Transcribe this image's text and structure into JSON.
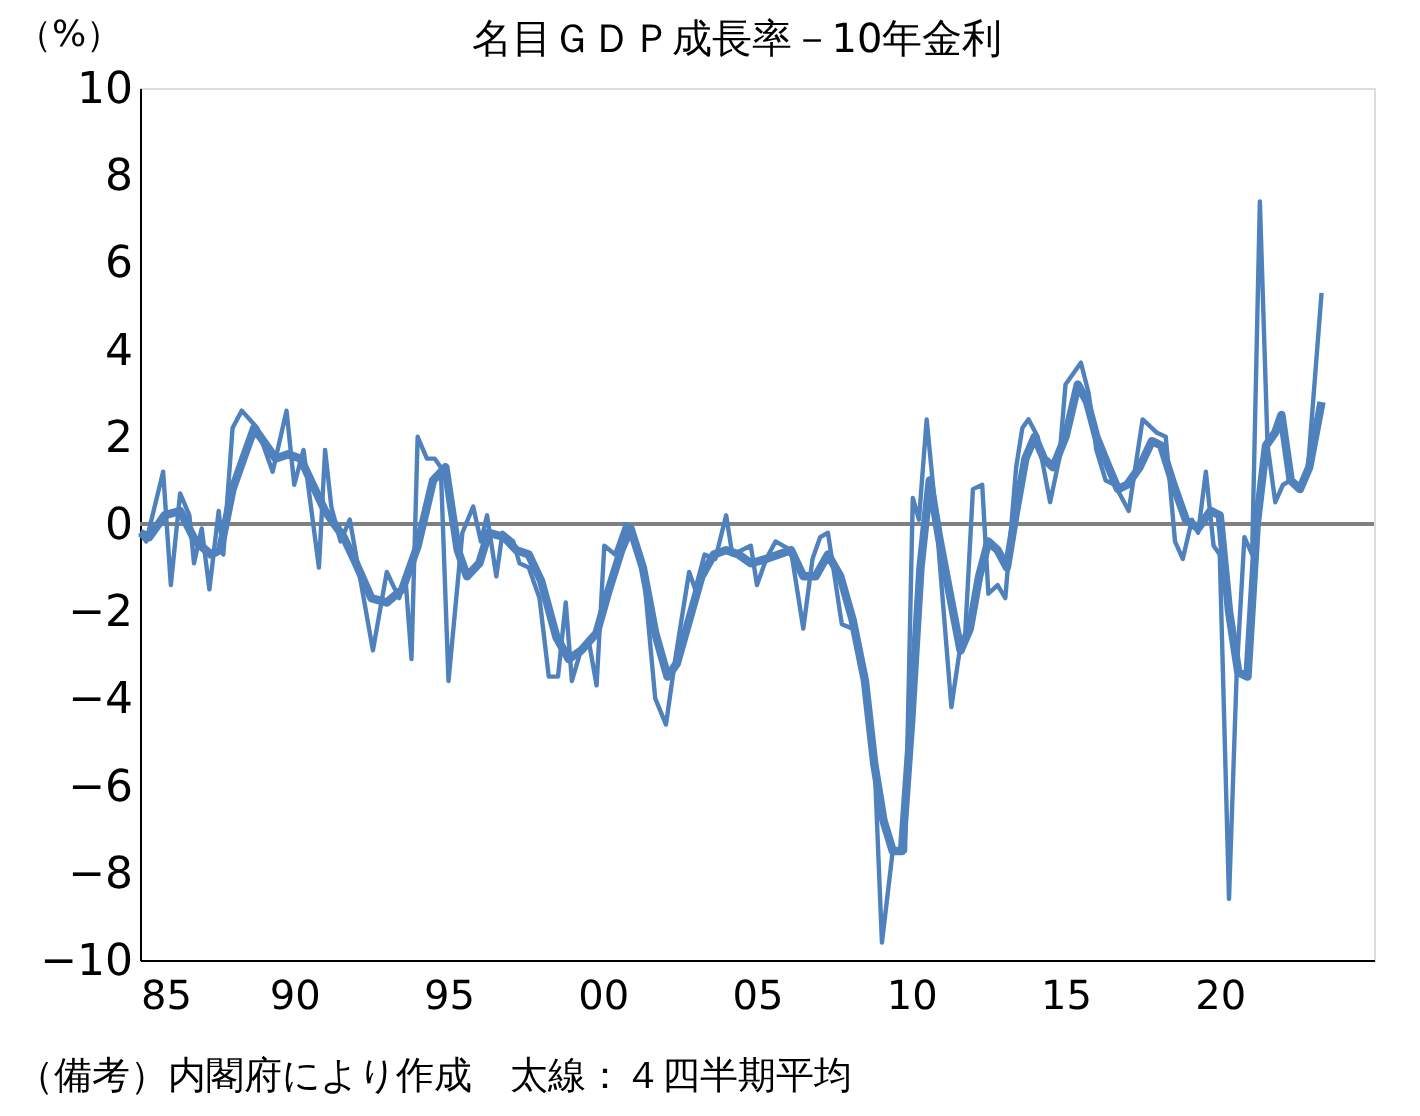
{
  "chart_data": {
    "type": "line",
    "title": "名目ＧＤＰ成長率－10年金利",
    "ylabel": "（%）",
    "annotations": [
      "（備考）内閣府により作成　太線：４四半期平均"
    ],
    "xlim": [
      1985,
      2025
    ],
    "xticks": [
      {
        "value": 1985,
        "label": "85"
      },
      {
        "value": 1990,
        "label": "90"
      },
      {
        "value": 1995,
        "label": "95"
      },
      {
        "value": 2000,
        "label": "00"
      },
      {
        "value": 2005,
        "label": "05"
      },
      {
        "value": 2010,
        "label": "10"
      },
      {
        "value": 2015,
        "label": "15"
      },
      {
        "value": 2020,
        "label": "20"
      }
    ],
    "ylim": [
      -10,
      10
    ],
    "yticks": [
      -10,
      -8,
      -6,
      -4,
      -2,
      0,
      2,
      4,
      6,
      8,
      10
    ],
    "grid": false,
    "line_style": "solid",
    "ref_lines": [
      {
        "axis": "y",
        "value": 0,
        "color": "#808080"
      }
    ],
    "series": [
      {
        "color": "#4f81bd",
        "x": [
          1985.0,
          1985.2,
          1985.75,
          1986.0,
          1986.3,
          1986.6,
          1986.75,
          1987.0,
          1987.25,
          1987.55,
          1987.7,
          1988.0,
          1988.3,
          1988.8,
          1989.3,
          1989.75,
          1990.0,
          1990.3,
          1990.8,
          1991.0,
          1991.2,
          1991.5,
          1991.8,
          1992.55,
          1993.0,
          1993.4,
          1993.6,
          1993.8,
          1994.0,
          1994.3,
          1994.55,
          1994.75,
          1995.0,
          1995.45,
          1995.8,
          1996.05,
          1996.25,
          1996.55,
          1996.75,
          1997.1,
          1997.3,
          1997.6,
          1997.95,
          1998.25,
          1998.55,
          1998.8,
          1999.0,
          1999.25,
          1999.55,
          1999.8,
          2000.05,
          2000.4,
          2000.75,
          2000.95,
          2001.3,
          2001.7,
          2002.05,
          2002.35,
          2002.8,
          2003.0,
          2003.3,
          2003.65,
          2004.0,
          2004.2,
          2004.5,
          2004.8,
          2005.0,
          2005.3,
          2005.6,
          2006.1,
          2006.5,
          2006.8,
          2007.05,
          2007.3,
          2007.75,
          2008.1,
          2008.5,
          2008.8,
          2009.05,
          2009.4,
          2009.8,
          2010.05,
          2010.25,
          2010.5,
          2010.8,
          2011.3,
          2011.55,
          2011.75,
          2012.0,
          2012.3,
          2012.5,
          2012.8,
          2013.05,
          2013.4,
          2013.6,
          2013.8,
          2014.1,
          2014.5,
          2014.8,
          2015.0,
          2015.5,
          2015.75,
          2016.0,
          2016.3,
          2016.6,
          2017.05,
          2017.5,
          2017.95,
          2018.25,
          2018.55,
          2018.8,
          2019.1,
          2019.3,
          2019.55,
          2019.8,
          2020.0,
          2020.3,
          2020.55,
          2020.8,
          2021.05,
          2021.3,
          2021.55,
          2021.8,
          2022.05,
          2022.3,
          2022.55,
          2022.85,
          2023.3
        ],
        "values": [
          -0.2,
          -0.4,
          1.2,
          -1.4,
          0.7,
          0.2,
          -0.9,
          -0.1,
          -1.5,
          0.3,
          -0.7,
          2.2,
          2.6,
          2.2,
          1.2,
          2.6,
          0.9,
          1.7,
          -1.0,
          1.7,
          0.4,
          -0.4,
          0.1,
          -2.9,
          -1.1,
          -1.7,
          -1.2,
          -3.1,
          2.0,
          1.5,
          1.5,
          1.3,
          -3.6,
          -0.2,
          0.4,
          -0.4,
          0.2,
          -1.2,
          -0.2,
          -0.4,
          -0.9,
          -1.0,
          -1.7,
          -3.5,
          -3.5,
          -1.8,
          -3.6,
          -3.0,
          -2.7,
          -3.7,
          -0.5,
          -0.7,
          0.0,
          -0.2,
          -0.9,
          -4.0,
          -4.6,
          -3.1,
          -1.1,
          -1.5,
          -0.7,
          -0.8,
          0.2,
          -0.7,
          -0.6,
          -0.5,
          -1.4,
          -0.8,
          -0.4,
          -0.6,
          -2.4,
          -0.8,
          -0.3,
          -0.2,
          -2.3,
          -2.4,
          -3.4,
          -5.3,
          -9.6,
          -7.5,
          -7.5,
          0.6,
          0.1,
          2.4,
          0.2,
          -4.2,
          -3.0,
          -2.5,
          0.8,
          0.9,
          -1.6,
          -1.4,
          -1.7,
          1.3,
          2.2,
          2.4,
          2.0,
          0.5,
          1.5,
          3.2,
          3.7,
          3.0,
          1.7,
          1.0,
          0.9,
          0.3,
          2.4,
          2.1,
          2.0,
          -0.4,
          -0.8,
          0.1,
          -0.2,
          1.2,
          -0.5,
          -0.7,
          -8.6,
          -3.4,
          -0.3,
          -0.7,
          7.4,
          1.8,
          0.5,
          0.9,
          1.0,
          0.8,
          1.2,
          5.3
        ]
      },
      {
        "color": "#4f81bd",
        "x": [
          1985.0,
          1985.3,
          1985.8,
          1986.3,
          1986.8,
          1987.3,
          1987.6,
          1988.0,
          1988.3,
          1988.7,
          1989.0,
          1989.4,
          1989.8,
          1990.2,
          1990.6,
          1991.0,
          1991.3,
          1991.6,
          1992.0,
          1992.5,
          1993.0,
          1993.5,
          1994.0,
          1994.5,
          1994.9,
          1995.3,
          1995.6,
          1996.0,
          1996.3,
          1996.8,
          1997.2,
          1997.6,
          1998.0,
          1998.5,
          1998.9,
          1999.3,
          1999.8,
          2000.2,
          2000.6,
          2000.9,
          2001.3,
          2001.7,
          2002.1,
          2002.4,
          2002.8,
          2003.2,
          2003.6,
          2004.0,
          2004.4,
          2004.8,
          2005.3,
          2005.7,
          2006.1,
          2006.5,
          2006.9,
          2007.3,
          2007.7,
          2008.1,
          2008.5,
          2008.8,
          2009.1,
          2009.4,
          2009.7,
          2010.0,
          2010.3,
          2010.6,
          2010.9,
          2011.3,
          2011.6,
          2011.9,
          2012.2,
          2012.5,
          2012.8,
          2013.1,
          2013.4,
          2013.7,
          2014.0,
          2014.3,
          2014.6,
          2015.0,
          2015.4,
          2015.7,
          2016.0,
          2016.4,
          2016.7,
          2017.0,
          2017.4,
          2017.8,
          2018.1,
          2018.5,
          2018.9,
          2019.3,
          2019.7,
          2020.0,
          2020.3,
          2020.6,
          2020.9,
          2021.2,
          2021.5,
          2021.8,
          2022.0,
          2022.3,
          2022.6,
          2022.9,
          2023.3
        ],
        "values": [
          -0.2,
          -0.3,
          0.2,
          0.3,
          -0.4,
          -0.7,
          -0.6,
          0.8,
          1.4,
          2.2,
          1.9,
          1.5,
          1.6,
          1.5,
          0.9,
          0.3,
          0.0,
          -0.3,
          -0.9,
          -1.7,
          -1.8,
          -1.5,
          -0.5,
          1.0,
          1.3,
          -0.6,
          -1.2,
          -0.9,
          -0.2,
          -0.3,
          -0.6,
          -0.7,
          -1.3,
          -2.6,
          -3.1,
          -2.9,
          -2.5,
          -1.5,
          -0.6,
          -0.1,
          -1.0,
          -2.5,
          -3.5,
          -3.2,
          -2.2,
          -1.2,
          -0.7,
          -0.6,
          -0.7,
          -0.9,
          -0.8,
          -0.7,
          -0.6,
          -1.2,
          -1.2,
          -0.7,
          -1.2,
          -2.2,
          -3.6,
          -5.5,
          -6.8,
          -7.5,
          -7.5,
          -4.5,
          -1.0,
          1.0,
          -0.3,
          -1.8,
          -2.9,
          -2.4,
          -1.2,
          -0.4,
          -0.6,
          -1.0,
          0.3,
          1.5,
          2.0,
          1.5,
          1.3,
          2.0,
          3.2,
          2.8,
          2.0,
          1.3,
          0.8,
          0.9,
          1.3,
          1.9,
          1.8,
          0.9,
          0.1,
          -0.1,
          0.3,
          0.2,
          -2.0,
          -3.4,
          -3.5,
          0.0,
          1.8,
          2.1,
          2.5,
          1.0,
          0.8,
          1.3,
          2.8
        ]
      }
    ]
  }
}
